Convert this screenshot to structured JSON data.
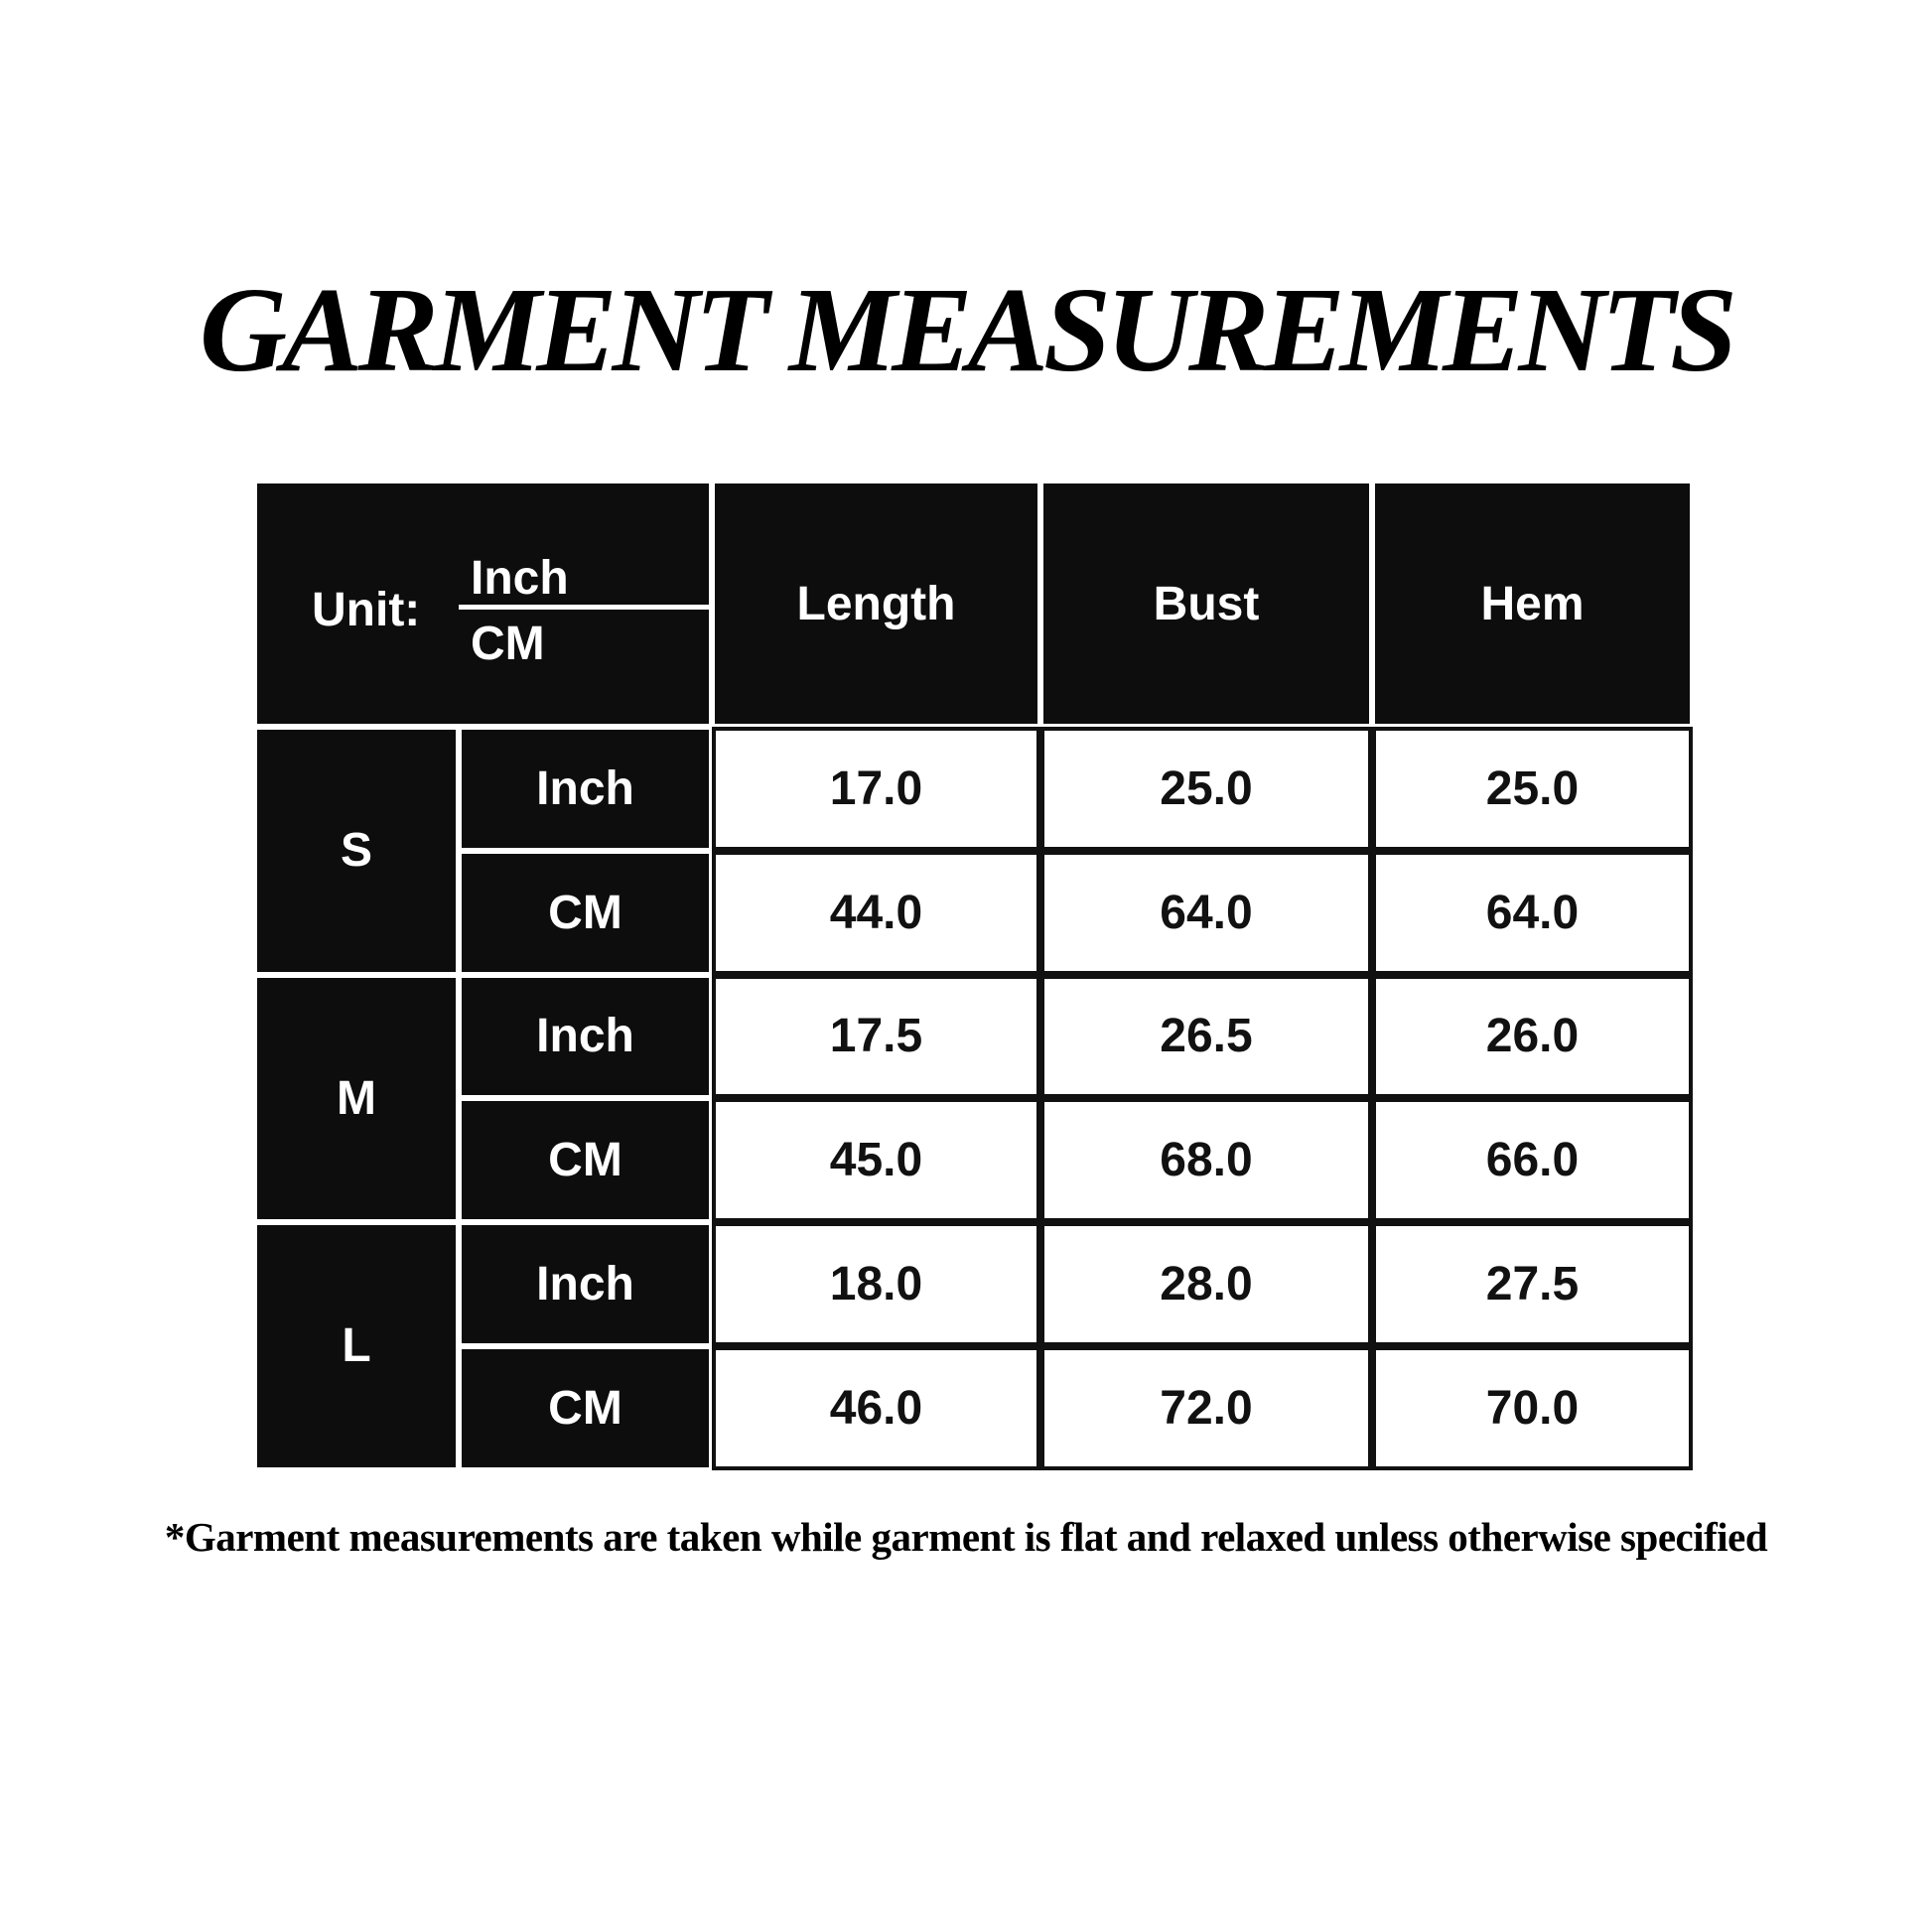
{
  "title": "GARMENT MEASUREMENTS",
  "table": {
    "unit_label": "Unit:",
    "unit_inch": "Inch",
    "unit_cm": "CM",
    "columns": [
      "Length",
      "Bust",
      "Hem"
    ],
    "sizes": [
      {
        "size": "S",
        "rows": [
          {
            "unit": "Inch",
            "values": [
              "17.0",
              "25.0",
              "25.0"
            ]
          },
          {
            "unit": "CM",
            "values": [
              "44.0",
              "64.0",
              "64.0"
            ]
          }
        ]
      },
      {
        "size": "M",
        "rows": [
          {
            "unit": "Inch",
            "values": [
              "17.5",
              "26.5",
              "26.0"
            ]
          },
          {
            "unit": "CM",
            "values": [
              "45.0",
              "68.0",
              "66.0"
            ]
          }
        ]
      },
      {
        "size": "L",
        "rows": [
          {
            "unit": "Inch",
            "values": [
              "18.0",
              "28.0",
              "27.5"
            ]
          },
          {
            "unit": "CM",
            "values": [
              "46.0",
              "72.0",
              "70.0"
            ]
          }
        ]
      }
    ]
  },
  "footnote": "*Garment measurements are taken while garment is flat and relaxed unless otherwise specified"
}
